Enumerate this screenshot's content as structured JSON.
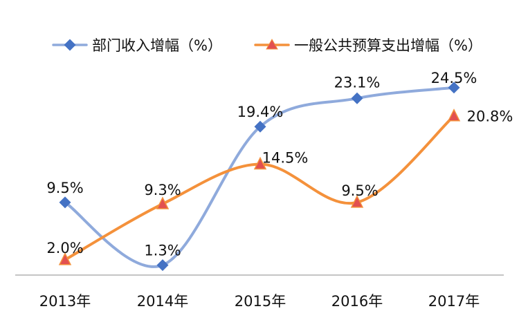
{
  "chart_data": {
    "type": "line",
    "categories": [
      "2013年",
      "2014年",
      "2015年",
      "2016年",
      "2017年"
    ],
    "series": [
      {
        "name": "部门收入增幅（%）",
        "values": [
          9.5,
          1.3,
          19.4,
          23.1,
          24.5
        ],
        "labels": [
          "9.5%",
          "1.3%",
          "19.4%",
          "23.1%",
          "24.5%"
        ],
        "color": "#8faadc",
        "marker_color": "#4472c4",
        "marker": "diamond"
      },
      {
        "name": "一般公共预算支出增幅（%）",
        "values": [
          2.0,
          9.3,
          14.5,
          9.5,
          20.8
        ],
        "labels": [
          "2.0%",
          "9.3%",
          "14.5%",
          "9.5%",
          "20.8%"
        ],
        "color": "#f4913b",
        "marker_color": "#e25050",
        "marker": "triangle"
      }
    ],
    "ylim": [
      0,
      30
    ],
    "grid": false,
    "legend_position": "top-left"
  }
}
